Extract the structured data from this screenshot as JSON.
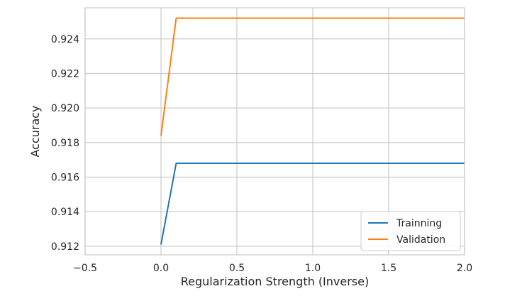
{
  "chart_data": {
    "type": "line",
    "title": "",
    "xlabel": "Regularization Strength (Inverse)",
    "ylabel": "Accuracy",
    "xlim": [
      -0.5,
      2.0
    ],
    "ylim": [
      0.9115,
      0.9258
    ],
    "xticks": [
      -0.5,
      0.0,
      0.5,
      1.0,
      1.5,
      2.0
    ],
    "xtick_labels": [
      "−0.5",
      "0.0",
      "0.5",
      "1.0",
      "1.5",
      "2.0"
    ],
    "yticks": [
      0.912,
      0.914,
      0.916,
      0.918,
      0.92,
      0.922,
      0.924
    ],
    "ytick_labels": [
      "0.912",
      "0.914",
      "0.916",
      "0.918",
      "0.920",
      "0.922",
      "0.924"
    ],
    "grid": true,
    "legend_position": "bottom-right",
    "series": [
      {
        "name": "Trainning",
        "color": "#1f77b4",
        "x": [
          0.0,
          0.1,
          2.0
        ],
        "y": [
          0.9121,
          0.9168,
          0.9168
        ]
      },
      {
        "name": "Validation",
        "color": "#ff7f0e",
        "x": [
          0.0,
          0.1,
          2.0
        ],
        "y": [
          0.9184,
          0.9252,
          0.9252
        ]
      }
    ]
  }
}
